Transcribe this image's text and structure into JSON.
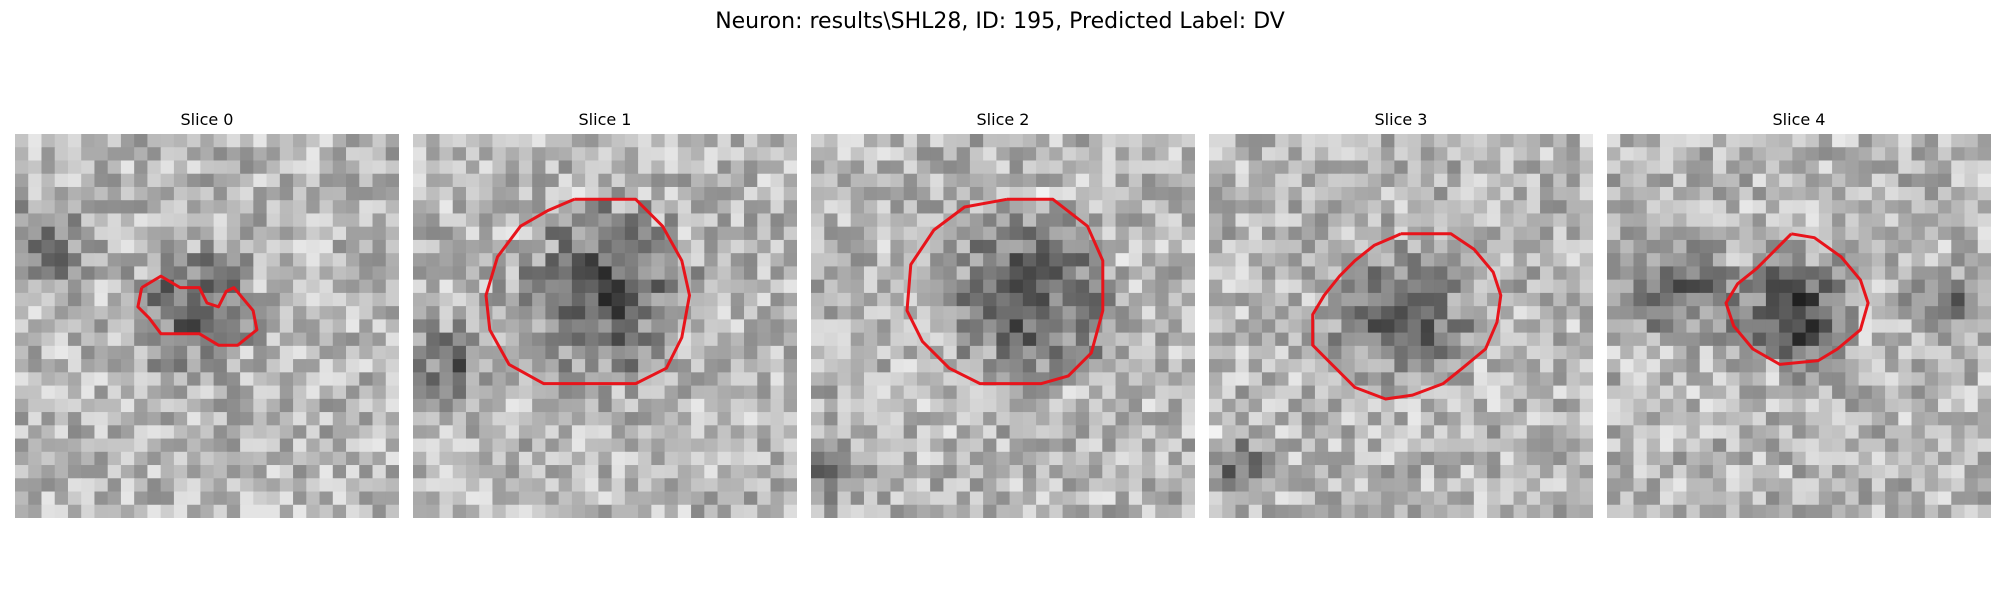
{
  "title": "Neuron: results\\SHL28, ID: 195, Predicted Label: DV",
  "panels": [
    {
      "title": "Slice 0",
      "contour": [
        [
          3.3,
          4.0
        ],
        [
          3.8,
          3.7
        ],
        [
          4.3,
          4.0
        ],
        [
          4.8,
          4.0
        ],
        [
          5.0,
          4.4
        ],
        [
          5.3,
          4.5
        ],
        [
          5.5,
          4.1
        ],
        [
          5.7,
          4.0
        ],
        [
          6.2,
          4.6
        ],
        [
          6.3,
          5.1
        ],
        [
          5.8,
          5.5
        ],
        [
          5.3,
          5.5
        ],
        [
          4.8,
          5.2
        ],
        [
          3.8,
          5.2
        ],
        [
          3.5,
          4.8
        ],
        [
          3.2,
          4.5
        ],
        [
          3.3,
          4.0
        ]
      ]
    },
    {
      "title": "Slice 1",
      "contour": [
        [
          4.2,
          1.7
        ],
        [
          5.8,
          1.7
        ],
        [
          6.5,
          2.4
        ],
        [
          7.0,
          3.3
        ],
        [
          7.2,
          4.2
        ],
        [
          7.0,
          5.3
        ],
        [
          6.6,
          6.1
        ],
        [
          5.8,
          6.5
        ],
        [
          4.4,
          6.5
        ],
        [
          3.4,
          6.5
        ],
        [
          2.5,
          6.0
        ],
        [
          2.0,
          5.1
        ],
        [
          1.9,
          4.2
        ],
        [
          2.2,
          3.2
        ],
        [
          2.8,
          2.4
        ],
        [
          3.5,
          2.0
        ],
        [
          4.2,
          1.7
        ]
      ]
    },
    {
      "title": "Slice 2",
      "contour": [
        [
          5.1,
          1.7
        ],
        [
          6.3,
          1.7
        ],
        [
          7.2,
          2.4
        ],
        [
          7.6,
          3.3
        ],
        [
          7.6,
          4.6
        ],
        [
          7.3,
          5.7
        ],
        [
          6.7,
          6.3
        ],
        [
          6.0,
          6.5
        ],
        [
          4.4,
          6.5
        ],
        [
          3.6,
          6.1
        ],
        [
          2.9,
          5.4
        ],
        [
          2.5,
          4.6
        ],
        [
          2.6,
          3.4
        ],
        [
          3.2,
          2.5
        ],
        [
          4.0,
          1.9
        ],
        [
          5.1,
          1.7
        ]
      ]
    },
    {
      "title": "Slice 3",
      "contour": [
        [
          5.0,
          2.6
        ],
        [
          6.3,
          2.6
        ],
        [
          6.9,
          3.0
        ],
        [
          7.4,
          3.6
        ],
        [
          7.6,
          4.2
        ],
        [
          7.5,
          4.9
        ],
        [
          7.2,
          5.6
        ],
        [
          6.6,
          6.1
        ],
        [
          6.1,
          6.5
        ],
        [
          5.3,
          6.8
        ],
        [
          4.6,
          6.9
        ],
        [
          3.8,
          6.6
        ],
        [
          3.2,
          6.0
        ],
        [
          2.7,
          5.5
        ],
        [
          2.7,
          4.7
        ],
        [
          3.0,
          4.2
        ],
        [
          3.4,
          3.7
        ],
        [
          3.8,
          3.3
        ],
        [
          4.3,
          2.9
        ],
        [
          5.0,
          2.6
        ]
      ]
    },
    {
      "title": "Slice 4",
      "contour": [
        [
          4.8,
          2.6
        ],
        [
          5.4,
          2.7
        ],
        [
          6.1,
          3.2
        ],
        [
          6.6,
          3.8
        ],
        [
          6.8,
          4.4
        ],
        [
          6.6,
          5.1
        ],
        [
          6.0,
          5.6
        ],
        [
          5.5,
          5.9
        ],
        [
          4.5,
          6.0
        ],
        [
          3.8,
          5.6
        ],
        [
          3.3,
          5.0
        ],
        [
          3.1,
          4.4
        ],
        [
          3.4,
          3.9
        ],
        [
          3.9,
          3.5
        ],
        [
          4.4,
          3.0
        ],
        [
          4.8,
          2.6
        ]
      ]
    }
  ]
}
